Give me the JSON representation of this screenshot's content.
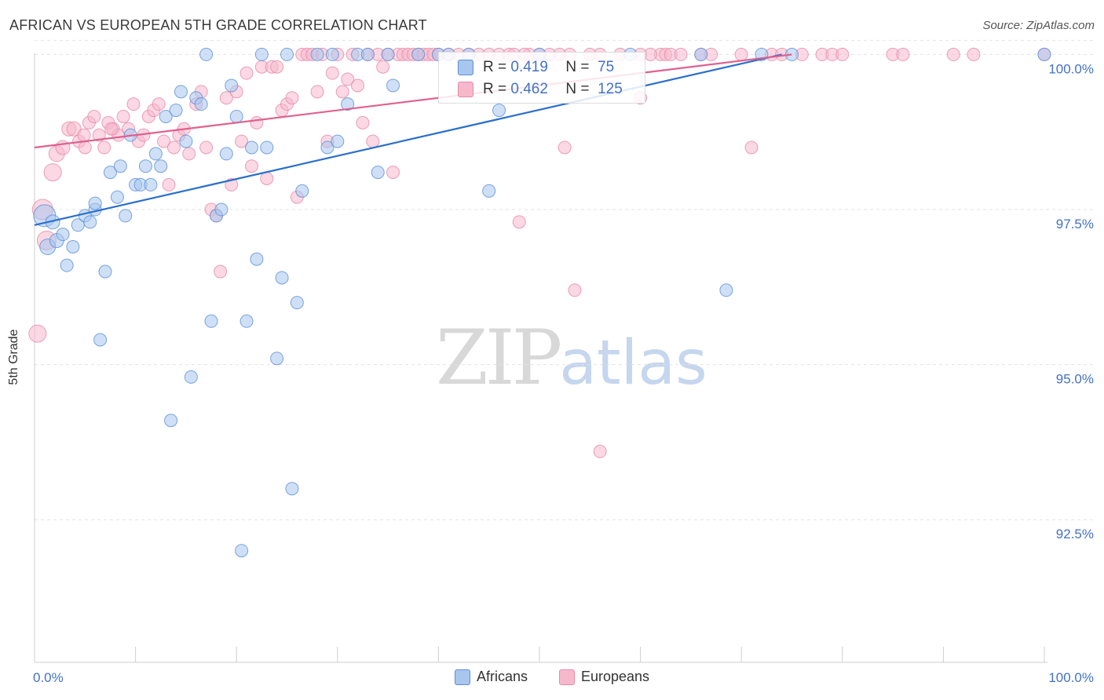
{
  "header": {
    "title": "AFRICAN VS EUROPEAN 5TH GRADE CORRELATION CHART",
    "source": "Source: ZipAtlas.com"
  },
  "watermark": {
    "zip": "ZIP",
    "atlas": "atlas"
  },
  "colors": {
    "africans_fill": "#a8c6ee",
    "africans_stroke": "#5b8fd8",
    "africans_line": "#2a6fcf",
    "europeans_fill": "#f7b8cc",
    "europeans_stroke": "#e58aa8",
    "europeans_line": "#e0608e",
    "tick": "#4472c4",
    "grid": "#e2e2e2"
  },
  "stats": {
    "rows": [
      {
        "r_label": "R =",
        "r_value": "0.419",
        "n_label": "N =",
        "n_value": "75"
      },
      {
        "r_label": "R =",
        "r_value": "0.462",
        "n_label": "N =",
        "n_value": "125"
      }
    ]
  },
  "chart_data": {
    "type": "scatter",
    "title": "AFRICAN VS EUROPEAN 5TH GRADE CORRELATION CHART",
    "xlabel": "",
    "ylabel": "5th Grade",
    "xlim": [
      0,
      100
    ],
    "ylim": [
      90.2,
      100.6
    ],
    "x_tick_labels": {
      "min": "0.0%",
      "max": "100.0%"
    },
    "y_ticks": [
      {
        "value": 100.0,
        "label": "100.0%"
      },
      {
        "value": 97.5,
        "label": "97.5%"
      },
      {
        "value": 95.0,
        "label": "95.0%"
      },
      {
        "value": 92.5,
        "label": "92.5%"
      }
    ],
    "legend": [
      "Africans",
      "Europeans"
    ],
    "series": [
      {
        "name": "Africans",
        "trend": {
          "x0": 0,
          "y0": 97.25,
          "x1": 74,
          "y1": 100.0
        },
        "points": [
          [
            1,
            97.4,
            14
          ],
          [
            1.8,
            97.3,
            9
          ],
          [
            1.3,
            96.9,
            10
          ],
          [
            2.2,
            97.0,
            9
          ],
          [
            2.8,
            97.1,
            8
          ],
          [
            3.2,
            96.6,
            8
          ],
          [
            3.8,
            96.9,
            8
          ],
          [
            4.3,
            97.25,
            8
          ],
          [
            5,
            97.4,
            8
          ],
          [
            5.5,
            97.3,
            8
          ],
          [
            6,
            97.5,
            8
          ],
          [
            7,
            96.5,
            8
          ],
          [
            6.5,
            95.4,
            8
          ],
          [
            7.5,
            98.1,
            8
          ],
          [
            8.2,
            97.7,
            8
          ],
          [
            8.5,
            98.2,
            8
          ],
          [
            9,
            97.4,
            8
          ],
          [
            9.5,
            98.7,
            8
          ],
          [
            10,
            97.9,
            8
          ],
          [
            10.5,
            97.9,
            8
          ],
          [
            11,
            98.2,
            8
          ],
          [
            11.5,
            97.9,
            8
          ],
          [
            12,
            98.4,
            8
          ],
          [
            12.5,
            98.2,
            8
          ],
          [
            13,
            99.0,
            8
          ],
          [
            14,
            99.1,
            8
          ],
          [
            14.5,
            99.4,
            8
          ],
          [
            15,
            98.6,
            8
          ],
          [
            15.5,
            94.8,
            8
          ],
          [
            13.5,
            94.1,
            8
          ],
          [
            16,
            99.3,
            8
          ],
          [
            16.5,
            99.2,
            8
          ],
          [
            17,
            100.0,
            8
          ],
          [
            17.5,
            95.7,
            8
          ],
          [
            18,
            97.4,
            8
          ],
          [
            18.5,
            97.5,
            8
          ],
          [
            19,
            98.4,
            8
          ],
          [
            19.5,
            99.5,
            8
          ],
          [
            20,
            99.0,
            8
          ],
          [
            20.5,
            92.0,
            8
          ],
          [
            21,
            95.7,
            8
          ],
          [
            21.5,
            98.5,
            8
          ],
          [
            22,
            96.7,
            8
          ],
          [
            22.5,
            100.0,
            8
          ],
          [
            23,
            98.5,
            8
          ],
          [
            24,
            95.1,
            8
          ],
          [
            24.5,
            96.4,
            8
          ],
          [
            25,
            100.0,
            8
          ],
          [
            25.5,
            93.0,
            8
          ],
          [
            26,
            96.0,
            8
          ],
          [
            26.5,
            97.8,
            8
          ],
          [
            28,
            100.0,
            8
          ],
          [
            29,
            98.5,
            8
          ],
          [
            29.5,
            100.0,
            8
          ],
          [
            30,
            98.6,
            8
          ],
          [
            31,
            99.2,
            8
          ],
          [
            32,
            100.0,
            8
          ],
          [
            33,
            100.0,
            8
          ],
          [
            34,
            98.1,
            8
          ],
          [
            35,
            100.0,
            8
          ],
          [
            35.5,
            99.5,
            8
          ],
          [
            38,
            100.0,
            8
          ],
          [
            40,
            100.0,
            8
          ],
          [
            41,
            100.0,
            8
          ],
          [
            43,
            100.0,
            8
          ],
          [
            45,
            97.8,
            8
          ],
          [
            46,
            99.1,
            8
          ],
          [
            50,
            100.0,
            8
          ],
          [
            59,
            100.0,
            8
          ],
          [
            66,
            100.0,
            8
          ],
          [
            68.5,
            96.2,
            8
          ],
          [
            72,
            100.0,
            8
          ],
          [
            75,
            100.0,
            8
          ],
          [
            100,
            100.0,
            8
          ],
          [
            6,
            97.6,
            8
          ]
        ]
      },
      {
        "name": "Europeans",
        "trend": {
          "x0": 0,
          "y0": 98.5,
          "x1": 75,
          "y1": 100.0
        },
        "points": [
          [
            0.3,
            95.5,
            11
          ],
          [
            0.8,
            97.5,
            13
          ],
          [
            1.2,
            97.0,
            12
          ],
          [
            1.8,
            98.1,
            11
          ],
          [
            2.2,
            98.4,
            10
          ],
          [
            2.8,
            98.5,
            9
          ],
          [
            3.4,
            98.8,
            9
          ],
          [
            3.9,
            98.8,
            9
          ],
          [
            4.4,
            98.6,
            8
          ],
          [
            4.9,
            98.7,
            8
          ],
          [
            5.4,
            98.9,
            8
          ],
          [
            5.9,
            99.0,
            8
          ],
          [
            6.4,
            98.7,
            8
          ],
          [
            6.9,
            98.5,
            8
          ],
          [
            7.3,
            98.9,
            8
          ],
          [
            7.8,
            98.8,
            8
          ],
          [
            8.3,
            98.7,
            8
          ],
          [
            8.8,
            99.0,
            8
          ],
          [
            9.3,
            98.8,
            8
          ],
          [
            9.8,
            99.2,
            8
          ],
          [
            10.3,
            98.6,
            8
          ],
          [
            10.8,
            98.7,
            8
          ],
          [
            11.3,
            99.0,
            8
          ],
          [
            11.8,
            99.1,
            8
          ],
          [
            12.3,
            99.2,
            8
          ],
          [
            12.8,
            98.6,
            8
          ],
          [
            13.3,
            97.9,
            8
          ],
          [
            13.8,
            98.5,
            8
          ],
          [
            14.3,
            98.7,
            8
          ],
          [
            14.8,
            98.8,
            8
          ],
          [
            15.3,
            98.4,
            8
          ],
          [
            16,
            99.2,
            8
          ],
          [
            16.5,
            99.4,
            8
          ],
          [
            17,
            98.5,
            8
          ],
          [
            17.5,
            97.5,
            8
          ],
          [
            18,
            97.4,
            8
          ],
          [
            18.4,
            96.5,
            8
          ],
          [
            19,
            99.3,
            8
          ],
          [
            19.5,
            97.9,
            8
          ],
          [
            20,
            99.4,
            8
          ],
          [
            20.5,
            98.6,
            8
          ],
          [
            21,
            99.7,
            8
          ],
          [
            21.5,
            98.2,
            8
          ],
          [
            22,
            98.9,
            8
          ],
          [
            22.5,
            99.8,
            8
          ],
          [
            23,
            98.0,
            8
          ],
          [
            23.5,
            99.8,
            8
          ],
          [
            24,
            99.8,
            8
          ],
          [
            24.5,
            99.1,
            8
          ],
          [
            25,
            99.2,
            8
          ],
          [
            25.5,
            99.3,
            8
          ],
          [
            26,
            97.7,
            8
          ],
          [
            26.5,
            100.0,
            8
          ],
          [
            27,
            100.0,
            8
          ],
          [
            27.5,
            100.0,
            8
          ],
          [
            28,
            99.4,
            8
          ],
          [
            28.5,
            100.0,
            8
          ],
          [
            29,
            98.6,
            8
          ],
          [
            29.5,
            99.7,
            8
          ],
          [
            30,
            100.0,
            8
          ],
          [
            30.5,
            99.4,
            8
          ],
          [
            31,
            99.6,
            8
          ],
          [
            31.5,
            100.0,
            8
          ],
          [
            32,
            99.5,
            8
          ],
          [
            32.5,
            98.9,
            8
          ],
          [
            33,
            100.0,
            8
          ],
          [
            33.5,
            98.6,
            8
          ],
          [
            34,
            100.0,
            8
          ],
          [
            34.5,
            99.8,
            8
          ],
          [
            35,
            100.0,
            8
          ],
          [
            35.5,
            98.1,
            8
          ],
          [
            36,
            100.0,
            8
          ],
          [
            36.5,
            100.0,
            8
          ],
          [
            37,
            100.0,
            8
          ],
          [
            37.5,
            100.0,
            8
          ],
          [
            38,
            100.0,
            8
          ],
          [
            38.5,
            100.0,
            8
          ],
          [
            39,
            100.0,
            8
          ],
          [
            39.5,
            100.0,
            8
          ],
          [
            40,
            100.0,
            8
          ],
          [
            41,
            100.0,
            8
          ],
          [
            42,
            100.0,
            8
          ],
          [
            43,
            100.0,
            8
          ],
          [
            44,
            100.0,
            8
          ],
          [
            45,
            100.0,
            8
          ],
          [
            46,
            100.0,
            8
          ],
          [
            47,
            100.0,
            8
          ],
          [
            48,
            97.3,
            8
          ],
          [
            49,
            100.0,
            8
          ],
          [
            50,
            100.0,
            8
          ],
          [
            47.5,
            100.0,
            8
          ],
          [
            48.5,
            100.0,
            8
          ],
          [
            51,
            100.0,
            8
          ],
          [
            52,
            100.0,
            8
          ],
          [
            53,
            100.0,
            8
          ],
          [
            55,
            100.0,
            8
          ],
          [
            56,
            100.0,
            8
          ],
          [
            58,
            100.0,
            8
          ],
          [
            60,
            100.0,
            8
          ],
          [
            62,
            100.0,
            8
          ],
          [
            52.5,
            98.5,
            8
          ],
          [
            53.5,
            96.2,
            8
          ],
          [
            56,
            93.6,
            8
          ],
          [
            60,
            99.3,
            8
          ],
          [
            61,
            100.0,
            8
          ],
          [
            62.5,
            100.0,
            8
          ],
          [
            63,
            100.0,
            8
          ],
          [
            64,
            100.0,
            8
          ],
          [
            66,
            100.0,
            8
          ],
          [
            67,
            100.0,
            8
          ],
          [
            70,
            100.0,
            8
          ],
          [
            71,
            98.5,
            8
          ],
          [
            73,
            100.0,
            8
          ],
          [
            74,
            100.0,
            8
          ],
          [
            76,
            100.0,
            8
          ],
          [
            78,
            100.0,
            8
          ],
          [
            79,
            100.0,
            8
          ],
          [
            80,
            100.0,
            8
          ],
          [
            85,
            100.0,
            8
          ],
          [
            86,
            100.0,
            8
          ],
          [
            91,
            100.0,
            8
          ],
          [
            93,
            100.0,
            8
          ],
          [
            100,
            100.0,
            8
          ],
          [
            5,
            98.5,
            8
          ],
          [
            7.6,
            98.8,
            8
          ]
        ]
      }
    ]
  }
}
